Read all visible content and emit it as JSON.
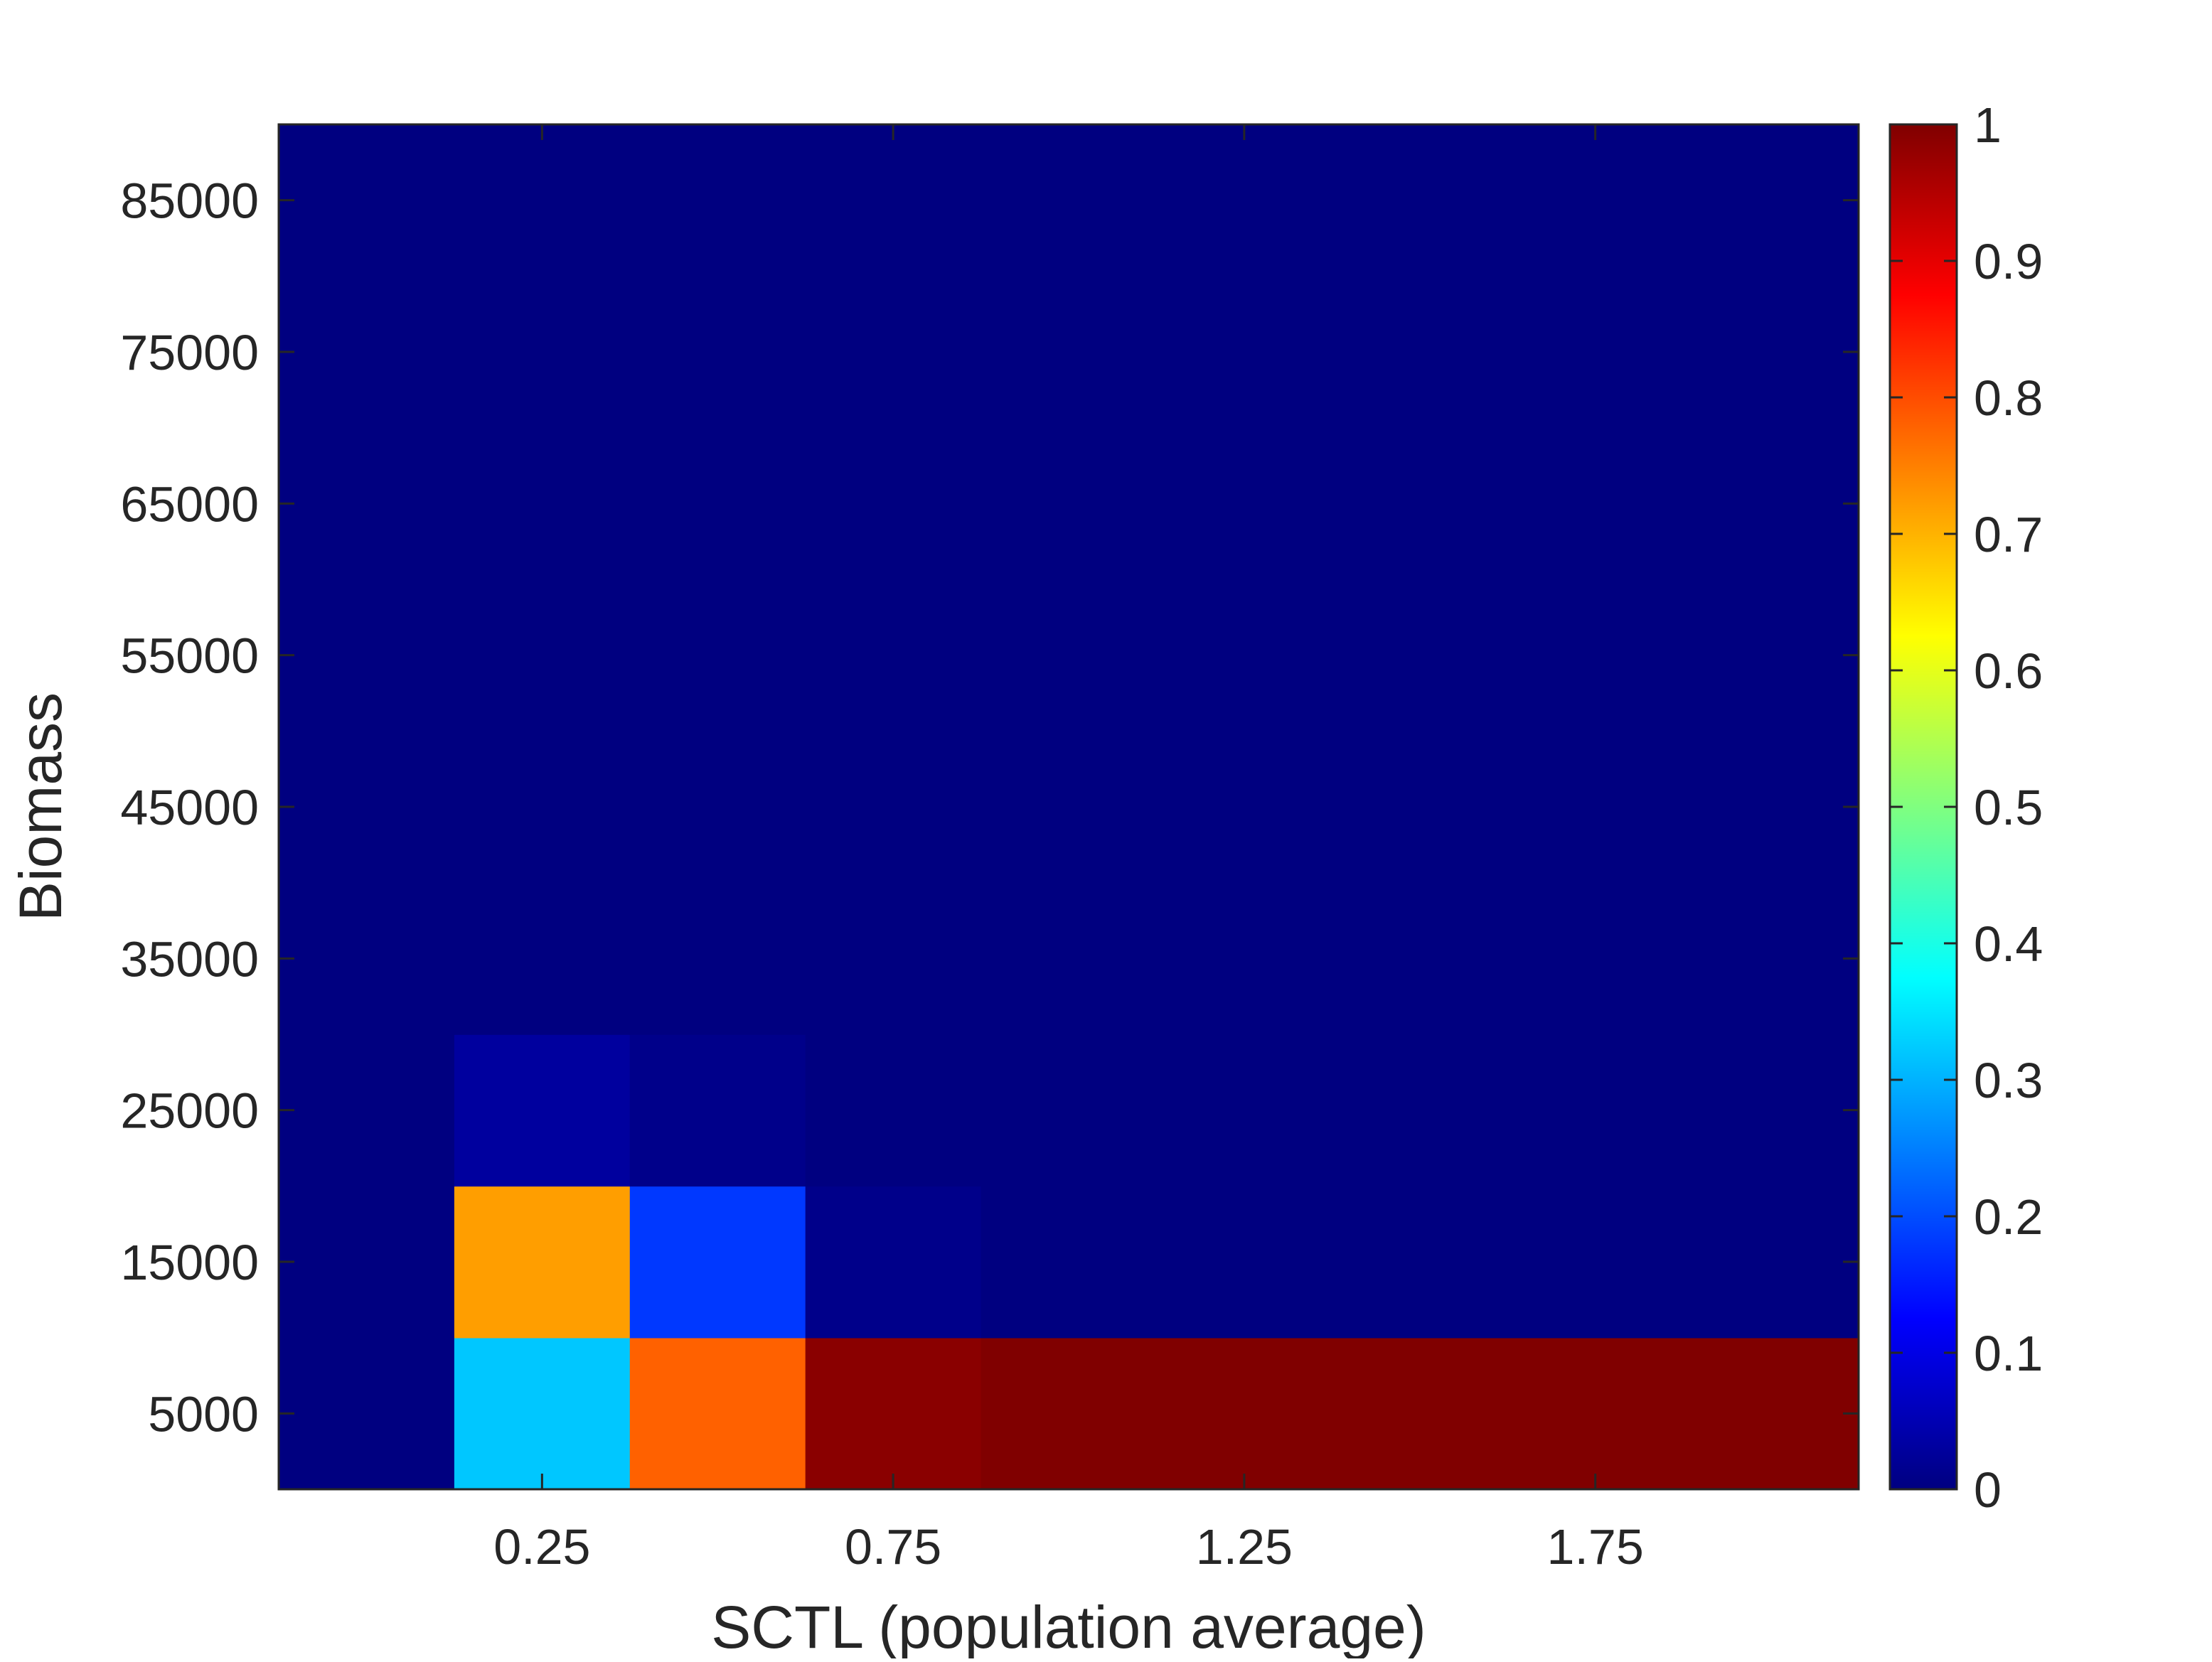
{
  "chart_data": {
    "type": "heatmap",
    "xlabel": "SCTL (population average)",
    "ylabel": "Biomass",
    "x_ticks": [
      "0.25",
      "0.75",
      "1.25",
      "1.75"
    ],
    "y_ticks": [
      "5000",
      "15000",
      "25000",
      "35000",
      "45000",
      "55000",
      "65000",
      "75000",
      "85000"
    ],
    "x_bin_centers": [
      0,
      0.25,
      0.5,
      0.75,
      1.0,
      1.25,
      1.5,
      1.75,
      2.0
    ],
    "x_bin_width": 0.25,
    "y_bin_centers": [
      5000,
      15000,
      25000,
      35000,
      45000,
      55000,
      65000,
      75000,
      85000
    ],
    "y_bin_height": 10000,
    "xlim": [
      -0.125,
      2.125
    ],
    "ylim": [
      0,
      90000
    ],
    "values": [
      [
        0.0,
        0.32,
        0.78,
        0.99,
        1.0,
        1.0,
        1.0,
        1.0,
        1.0
      ],
      [
        0.0,
        0.72,
        0.18,
        0.01,
        0.0,
        0.0,
        0.0,
        0.0,
        0.0
      ],
      [
        0.0,
        0.03,
        0.01,
        0.0,
        0.0,
        0.0,
        0.0,
        0.0,
        0.0
      ],
      [
        0.0,
        0.0,
        0.0,
        0.0,
        0.0,
        0.0,
        0.0,
        0.0,
        0.0
      ],
      [
        0.0,
        0.0,
        0.0,
        0.0,
        0.0,
        0.0,
        0.0,
        0.0,
        0.0
      ],
      [
        0.0,
        0.0,
        0.0,
        0.0,
        0.0,
        0.0,
        0.0,
        0.0,
        0.0
      ],
      [
        0.0,
        0.0,
        0.0,
        0.0,
        0.0,
        0.0,
        0.0,
        0.0,
        0.0
      ],
      [
        0.0,
        0.0,
        0.0,
        0.0,
        0.0,
        0.0,
        0.0,
        0.0,
        0.0
      ],
      [
        0.0,
        0.0,
        0.0,
        0.0,
        0.0,
        0.0,
        0.0,
        0.0,
        0.0
      ]
    ],
    "colormap": "jet",
    "colorbar": {
      "range": [
        0,
        1
      ],
      "ticks": [
        "0",
        "0.1",
        "0.2",
        "0.3",
        "0.4",
        "0.5",
        "0.6",
        "0.7",
        "0.8",
        "0.9",
        "1"
      ]
    },
    "grid": false
  }
}
